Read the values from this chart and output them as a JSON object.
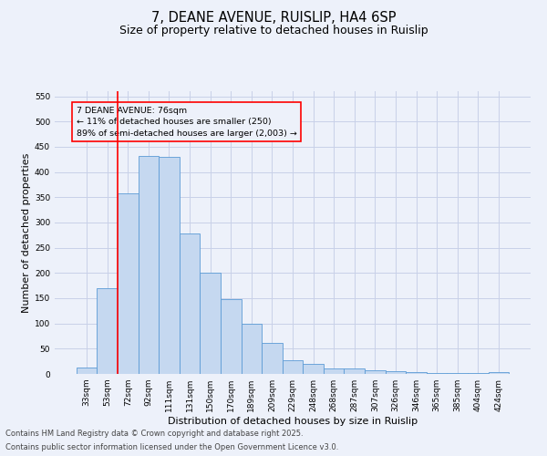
{
  "title_line1": "7, DEANE AVENUE, RUISLIP, HA4 6SP",
  "title_line2": "Size of property relative to detached houses in Ruislip",
  "xlabel": "Distribution of detached houses by size in Ruislip",
  "ylabel": "Number of detached properties",
  "categories": [
    "33sqm",
    "53sqm",
    "72sqm",
    "92sqm",
    "111sqm",
    "131sqm",
    "150sqm",
    "170sqm",
    "189sqm",
    "209sqm",
    "229sqm",
    "248sqm",
    "268sqm",
    "287sqm",
    "307sqm",
    "326sqm",
    "346sqm",
    "365sqm",
    "385sqm",
    "404sqm",
    "424sqm"
  ],
  "values": [
    13,
    170,
    357,
    432,
    430,
    278,
    201,
    149,
    99,
    61,
    27,
    19,
    11,
    11,
    7,
    5,
    4,
    2,
    1,
    2,
    3
  ],
  "bar_color": "#c5d8f0",
  "bar_edge_color": "#5b9bd5",
  "grid_color": "#c8d0e8",
  "background_color": "#edf1fa",
  "vline_x_index": 2,
  "vline_color": "red",
  "annotation_title": "7 DEANE AVENUE: 76sqm",
  "annotation_line1": "← 11% of detached houses are smaller (250)",
  "annotation_line2": "89% of semi-detached houses are larger (2,003) →",
  "annotation_box_color": "red",
  "ylim": [
    0,
    560
  ],
  "yticks": [
    0,
    50,
    100,
    150,
    200,
    250,
    300,
    350,
    400,
    450,
    500,
    550
  ],
  "footer_line1": "Contains HM Land Registry data © Crown copyright and database right 2025.",
  "footer_line2": "Contains public sector information licensed under the Open Government Licence v3.0.",
  "title_fontsize": 10.5,
  "subtitle_fontsize": 9,
  "axis_label_fontsize": 8,
  "tick_fontsize": 6.5,
  "annotation_fontsize": 6.8,
  "footer_fontsize": 6
}
